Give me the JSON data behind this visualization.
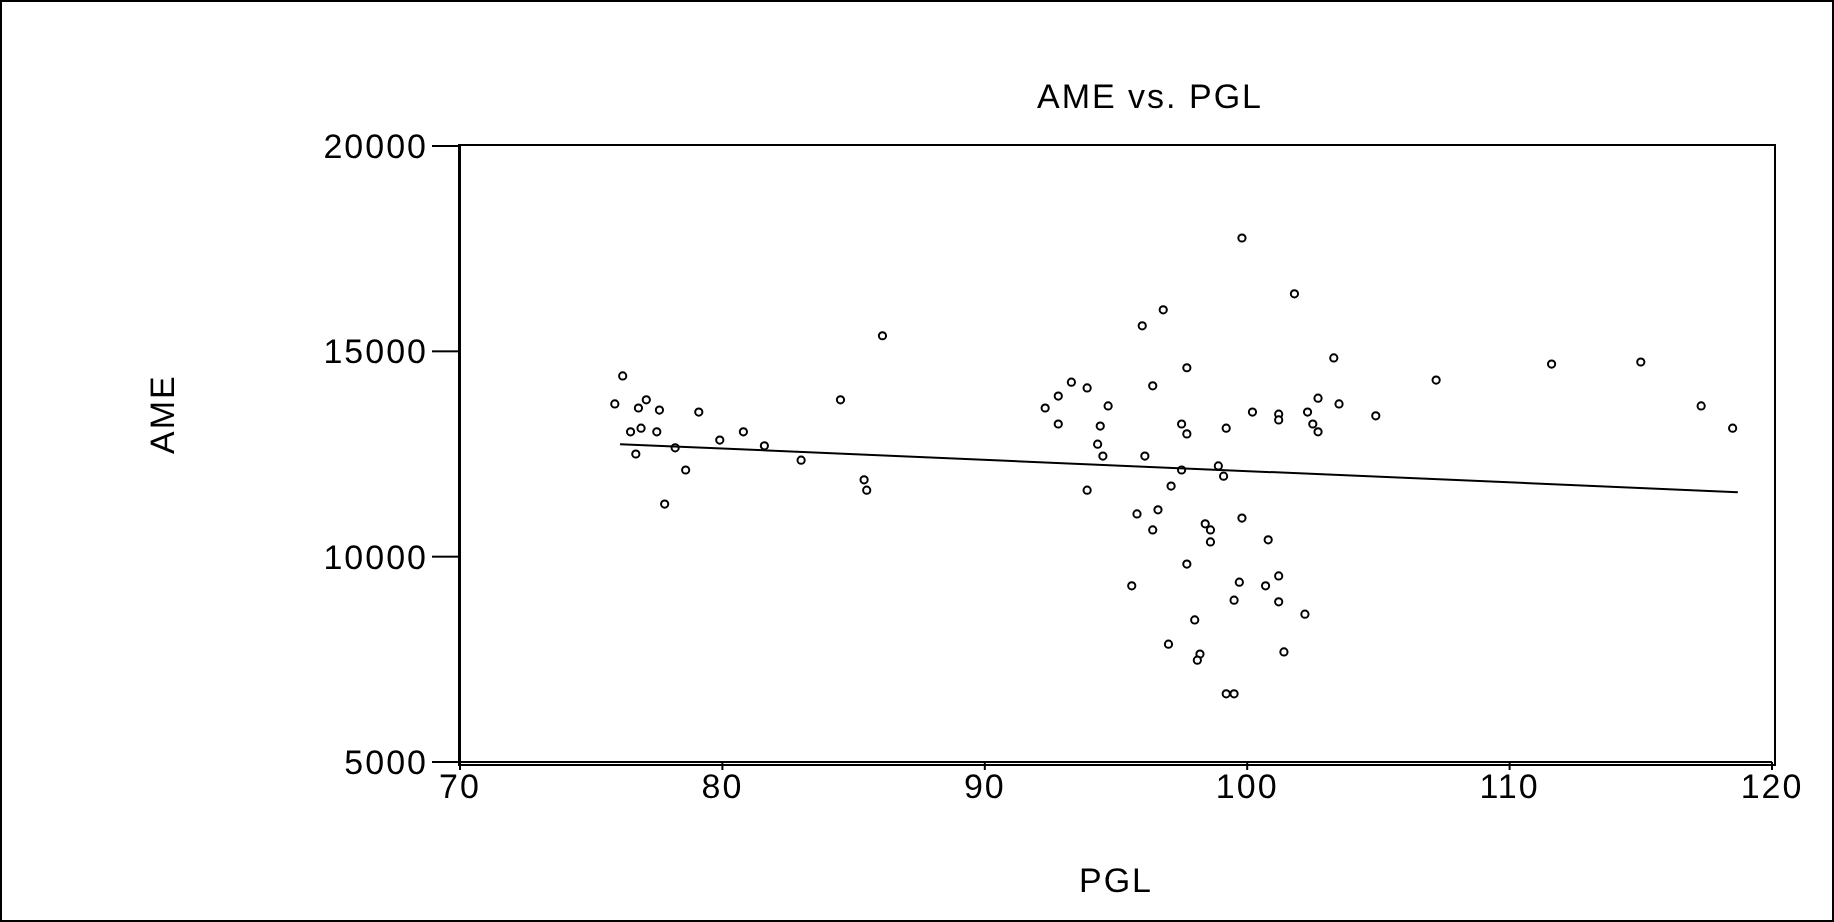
{
  "chart_data": {
    "type": "scatter",
    "title": "AME vs. PGL",
    "xlabel": "PGL",
    "ylabel": "AME",
    "xlim": [
      70,
      120
    ],
    "xticks": [
      70,
      80,
      90,
      100,
      110,
      120
    ],
    "ylim": [
      5000,
      20000
    ],
    "yticks": [
      5000,
      10000,
      15000,
      20000
    ],
    "grid": false,
    "legend": false,
    "series": [
      {
        "marker": "circle",
        "color": "#000000",
        "x": [
          76.2,
          75.9,
          76.8,
          77.1,
          77.6,
          76.5,
          76.9,
          77.5,
          76.7,
          78.2,
          78.6,
          77.8,
          79.1,
          79.9,
          80.8,
          81.6,
          83.0,
          84.5,
          86.1,
          85.4,
          85.5,
          99.8,
          101.8,
          96.8,
          96.0,
          97.7,
          93.3,
          93.9,
          96.4,
          92.8,
          94.7,
          92.3,
          102.7,
          100.2,
          101.2,
          102.3,
          101.2,
          92.8,
          94.4,
          97.5,
          97.7,
          99.2,
          102.5,
          102.7,
          94.3,
          94.5,
          96.1,
          97.5,
          98.9,
          99.1,
          93.9,
          97.1,
          95.8,
          96.6,
          96.4,
          98.4,
          98.6,
          99.8,
          98.6,
          100.8,
          97.7,
          95.6,
          99.7,
          101.2,
          100.7,
          99.5,
          101.2,
          102.2,
          98.0,
          97.0,
          98.2,
          98.1,
          101.4,
          99.2,
          99.5,
          103.3,
          107.2,
          103.5,
          104.9,
          111.6,
          115.0,
          117.3,
          118.5
        ],
        "values": [
          14400,
          13720,
          13620,
          13820,
          13570,
          13040,
          13130,
          13040,
          12500,
          12650,
          12110,
          11280,
          13520,
          12840,
          13040,
          12700,
          12350,
          13820,
          15380,
          11870,
          11620,
          17760,
          16400,
          16010,
          15620,
          14600,
          14250,
          14110,
          14160,
          13910,
          13670,
          13620,
          13860,
          13520,
          13470,
          13520,
          13330,
          13230,
          13180,
          13230,
          12990,
          13130,
          13230,
          13040,
          12740,
          12450,
          12450,
          12110,
          12210,
          11960,
          11620,
          11720,
          11040,
          11140,
          10650,
          10800,
          10650,
          10940,
          10360,
          10410,
          9820,
          9290,
          9380,
          9530,
          9290,
          8940,
          8900,
          8600,
          8460,
          7870,
          7630,
          7480,
          7680,
          6660,
          6660,
          14840,
          14300,
          13720,
          13430,
          14690,
          14740,
          13670,
          13130
        ]
      },
      {
        "type": "line",
        "marker": "none",
        "color": "#000000",
        "line_style": "solid",
        "x": [
          76.1,
          118.7
        ],
        "values": [
          12740,
          11570
        ]
      }
    ]
  }
}
